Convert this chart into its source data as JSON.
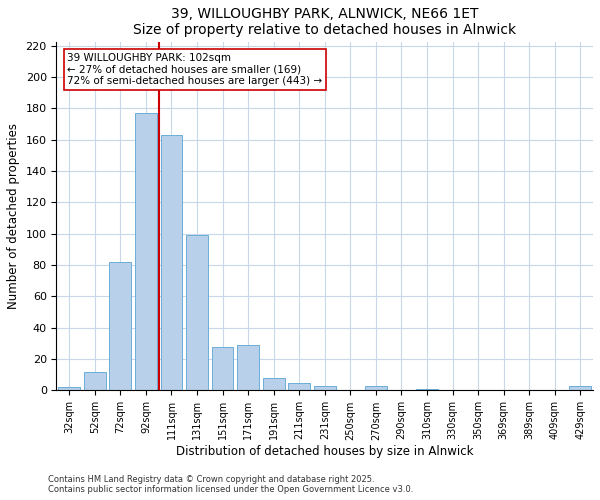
{
  "title": "39, WILLOUGHBY PARK, ALNWICK, NE66 1ET",
  "subtitle": "Size of property relative to detached houses in Alnwick",
  "xlabel": "Distribution of detached houses by size in Alnwick",
  "ylabel": "Number of detached properties",
  "bar_labels": [
    "32sqm",
    "52sqm",
    "72sqm",
    "92sqm",
    "111sqm",
    "131sqm",
    "151sqm",
    "171sqm",
    "191sqm",
    "211sqm",
    "231sqm",
    "250sqm",
    "270sqm",
    "290sqm",
    "310sqm",
    "330sqm",
    "350sqm",
    "369sqm",
    "389sqm",
    "409sqm",
    "429sqm"
  ],
  "bar_values": [
    2,
    12,
    82,
    177,
    163,
    99,
    28,
    29,
    8,
    5,
    3,
    0,
    3,
    0,
    1,
    0,
    0,
    0,
    0,
    0,
    3
  ],
  "bar_color": "#b8d0ea",
  "bar_edge_color": "#6aaed6",
  "vline_color": "#cc0000",
  "annotation_text": "39 WILLOUGHBY PARK: 102sqm\n← 27% of detached houses are smaller (169)\n72% of semi-detached houses are larger (443) →",
  "annotation_box_color": "#ffffff",
  "annotation_box_edge": "#cc0000",
  "ylim": [
    0,
    222
  ],
  "yticks": [
    0,
    20,
    40,
    60,
    80,
    100,
    120,
    140,
    160,
    180,
    200,
    220
  ],
  "footnote1": "Contains HM Land Registry data © Crown copyright and database right 2025.",
  "footnote2": "Contains public sector information licensed under the Open Government Licence v3.0.",
  "background_color": "#ffffff",
  "grid_color": "#c8d8e8"
}
